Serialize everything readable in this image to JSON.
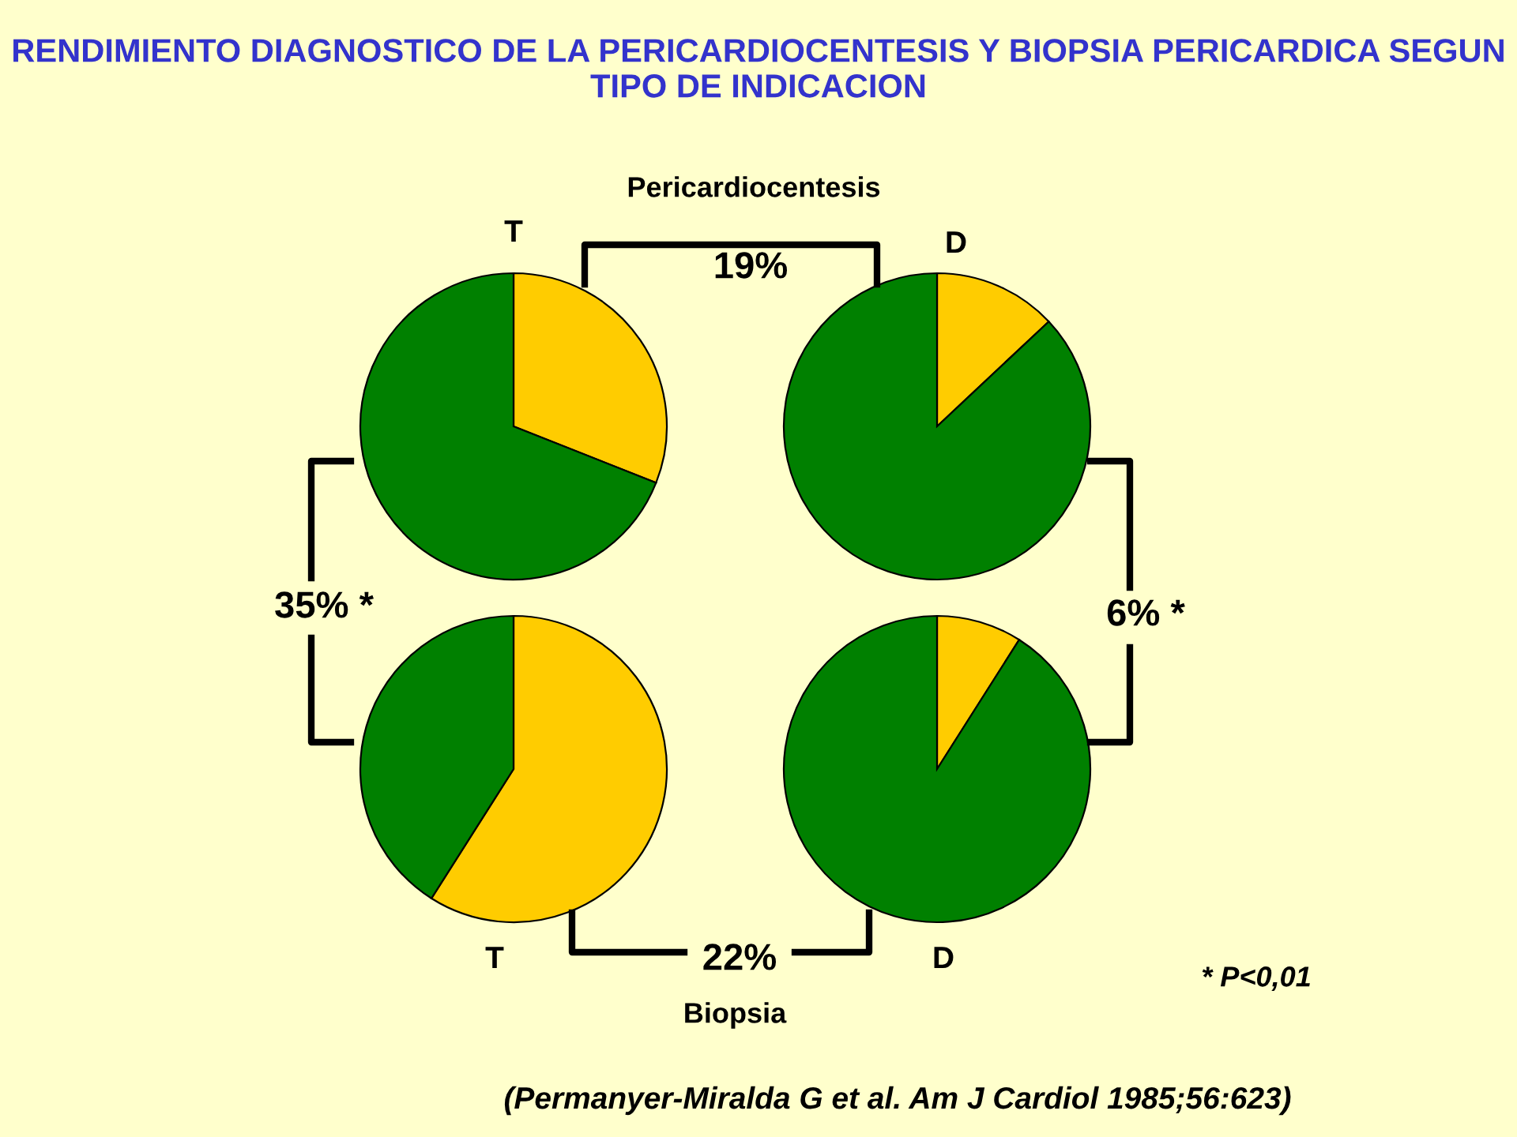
{
  "chart_data": [
    {
      "type": "pie",
      "title": "T",
      "categories": [
        null,
        null
      ],
      "values": [
        31,
        69
      ],
      "colors": [
        "#ffcc00",
        "#008000"
      ]
    },
    {
      "type": "pie",
      "title": "D",
      "categories": [
        null,
        null
      ],
      "values": [
        13,
        87
      ],
      "colors": [
        "#ffcc00",
        "#008000"
      ]
    },
    {
      "type": "pie",
      "title": "T",
      "categories": [
        null,
        null
      ],
      "values": [
        59,
        41
      ],
      "colors": [
        "#ffcc00",
        "#008000"
      ]
    },
    {
      "type": "pie",
      "title": "D",
      "categories": [
        null,
        null
      ],
      "values": [
        9,
        91
      ],
      "colors": [
        "#ffcc00",
        "#008000"
      ]
    },
    {
      "type": "other",
      "title": "RENDIMIENTO DIAGNOSTICO DE LA PERICARDIOCENTESIS Y BIOPSIA PERICARDICA SEGUN TIPO DE INDICACION",
      "annotations": [
        "Pericardiocentesis",
        "Biopsia",
        "19%",
        "35% *",
        "6% *",
        "22%",
        "* P<0,01",
        "(Permanyer-Miralda G et al. Am J Cardiol 1985;56:623)"
      ]
    }
  ]
}
